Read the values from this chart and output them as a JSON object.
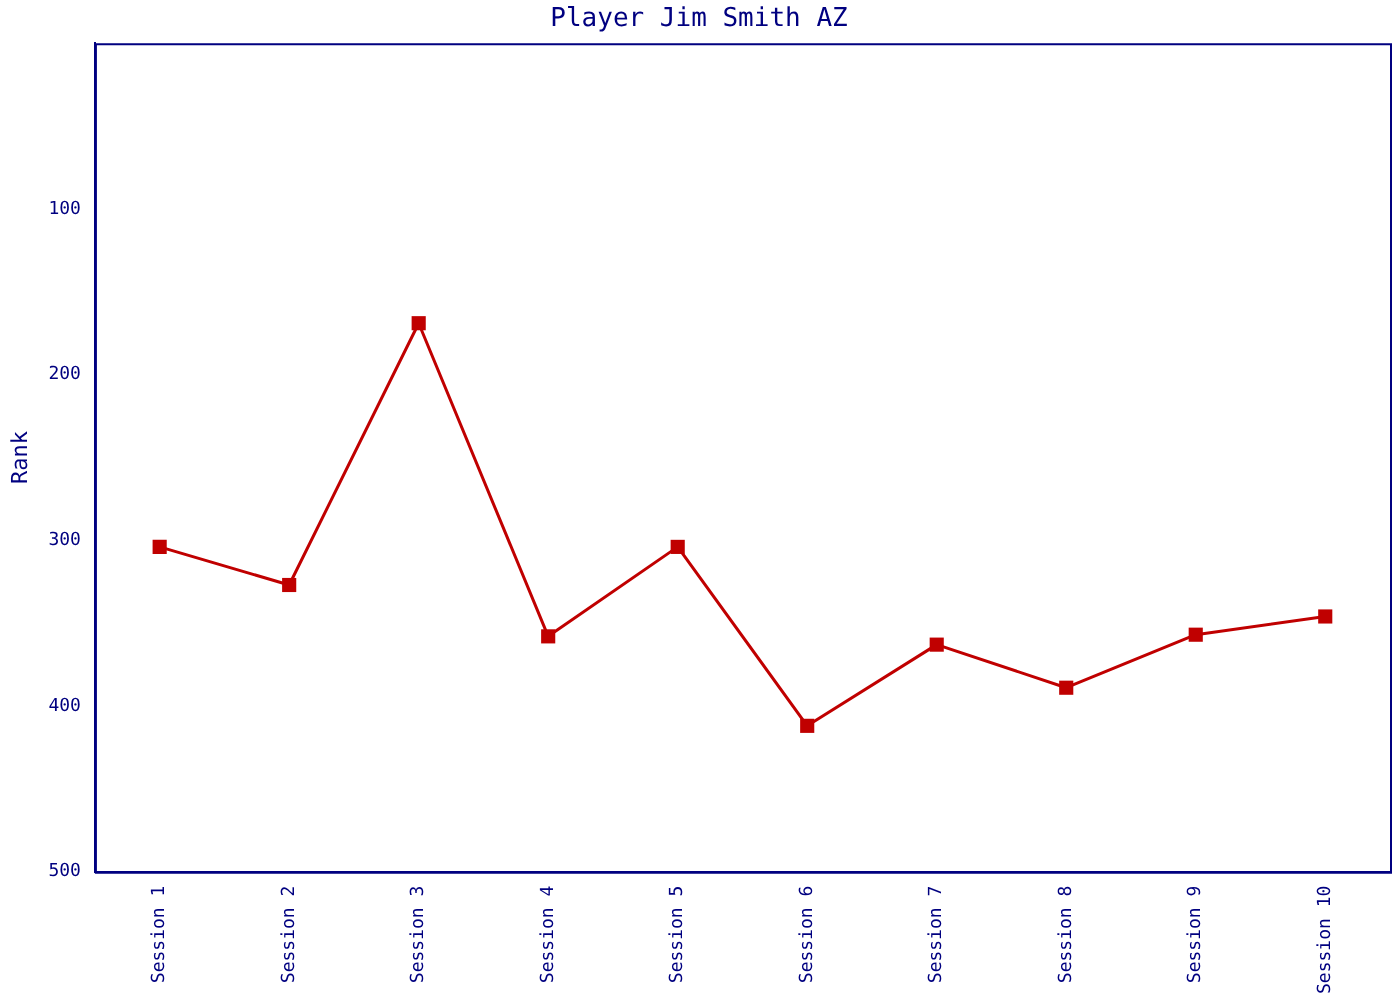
{
  "chart_data": {
    "type": "line",
    "title": "Player Jim Smith AZ",
    "ylabel": "Rank",
    "categories": [
      "Session 1",
      "Session 2",
      "Session 3",
      "Session 4",
      "Session 5",
      "Session 6",
      "Session 7",
      "Session 8",
      "Session 9",
      "Session 10"
    ],
    "series": [
      {
        "color": "#c00000",
        "values": [
          304,
          327,
          169,
          358,
          304,
          412,
          363,
          389,
          357,
          346
        ]
      }
    ],
    "ylim": [
      500,
      0
    ],
    "yticks": [
      100,
      200,
      300,
      400,
      500
    ],
    "grid": false,
    "legend": false,
    "marker": "square",
    "line_style": "solid"
  }
}
